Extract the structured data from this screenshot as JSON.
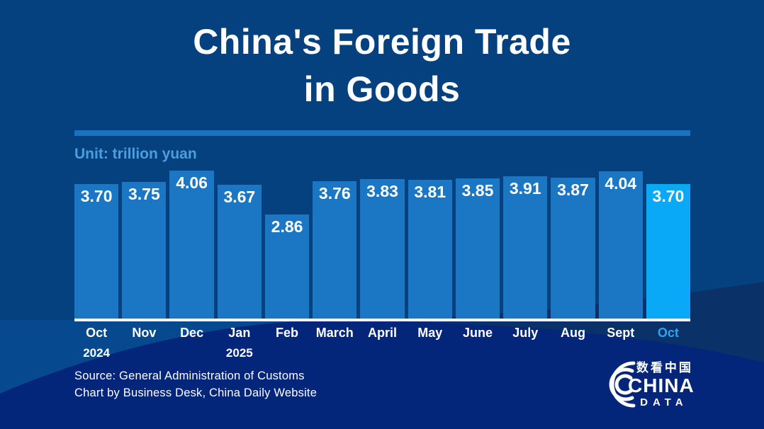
{
  "title": {
    "line1": "China's Foreign Trade",
    "line2": "in Goods"
  },
  "unit_label": "Unit: trillion yuan",
  "source": {
    "line1": "Source: General Administration of Customs",
    "line2": "Chart by Business Desk, China Daily Website"
  },
  "logo": {
    "chinese": "数看中国",
    "line1": "CHINA",
    "line2": "DATA"
  },
  "colors": {
    "background": "#05417F",
    "left_wedge": "#06498E",
    "right_mid_swath": "#0A3168",
    "bottom_navy_swath": "#03257A",
    "bar": "#1B76C4",
    "bar_highlight": "#0AA9F7",
    "title_rule": "#1B72C0",
    "unit_text": "#4C9EDE",
    "month_highlight_text": "#2BA4F1",
    "baseline": "#FFFFFF",
    "text": "#FFFFFF"
  },
  "chart_data": {
    "type": "bar",
    "title": "China's Foreign Trade in Goods",
    "unit": "trillion yuan",
    "categories": [
      "Oct",
      "Nov",
      "Dec",
      "Jan",
      "Feb",
      "March",
      "April",
      "May",
      "June",
      "July",
      "Aug",
      "Sept",
      "Oct"
    ],
    "year_labels": {
      "0": "2024",
      "3": "2025"
    },
    "values": [
      3.7,
      3.75,
      4.06,
      3.67,
      2.86,
      3.76,
      3.83,
      3.81,
      3.85,
      3.91,
      3.87,
      4.04,
      3.7
    ],
    "value_label_format": "2-decimals",
    "highlight_index": 12,
    "ylim": [
      0,
      4.06
    ],
    "grid": false,
    "legend": false,
    "value_labels_position": "inside-top",
    "xlabel": "",
    "ylabel": "trillion yuan"
  }
}
